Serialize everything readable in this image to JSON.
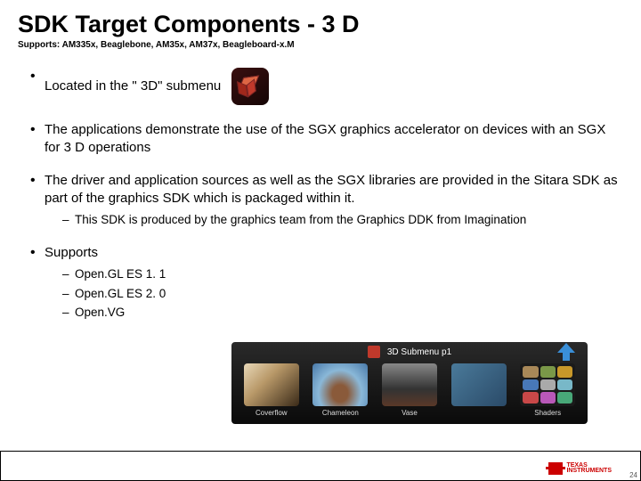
{
  "title": "SDK Target Components - 3 D",
  "subtitle": "Supports: AM335x, Beaglebone, AM35x, AM37x, Beagleboard-x.M",
  "bullets": {
    "b1": "Located in the \" 3D\" submenu",
    "b2": "The applications demonstrate the use of the SGX graphics accelerator on devices with an SGX for 3 D operations",
    "b3": "The driver and application sources as well as the SGX libraries are provided in the Sitara SDK as part of the graphics SDK which is packaged within it.",
    "b3_sub1": "This SDK is produced by the graphics team from the Graphics DDK from Imagination",
    "b4": "Supports",
    "b4_sub1": "Open.GL ES 1. 1",
    "b4_sub2": "Open.GL ES 2. 0",
    "b4_sub3": "Open.VG"
  },
  "submenu": {
    "header": "3D Submenu p1",
    "tiles": {
      "t1": "Coverflow",
      "t2": "Chameleon",
      "t3": "Vase",
      "t4": "",
      "t5": "Shaders"
    }
  },
  "footer": {
    "brand_line1": "TEXAS",
    "brand_line2": "INSTRUMENTS",
    "page": "24"
  },
  "tile_colors": [
    "#a88858",
    "#7a9848",
    "#c8982a",
    "#4878b8",
    "#aaa",
    "#78b8c8",
    "#c84848",
    "#b858b8",
    "#48a878"
  ]
}
